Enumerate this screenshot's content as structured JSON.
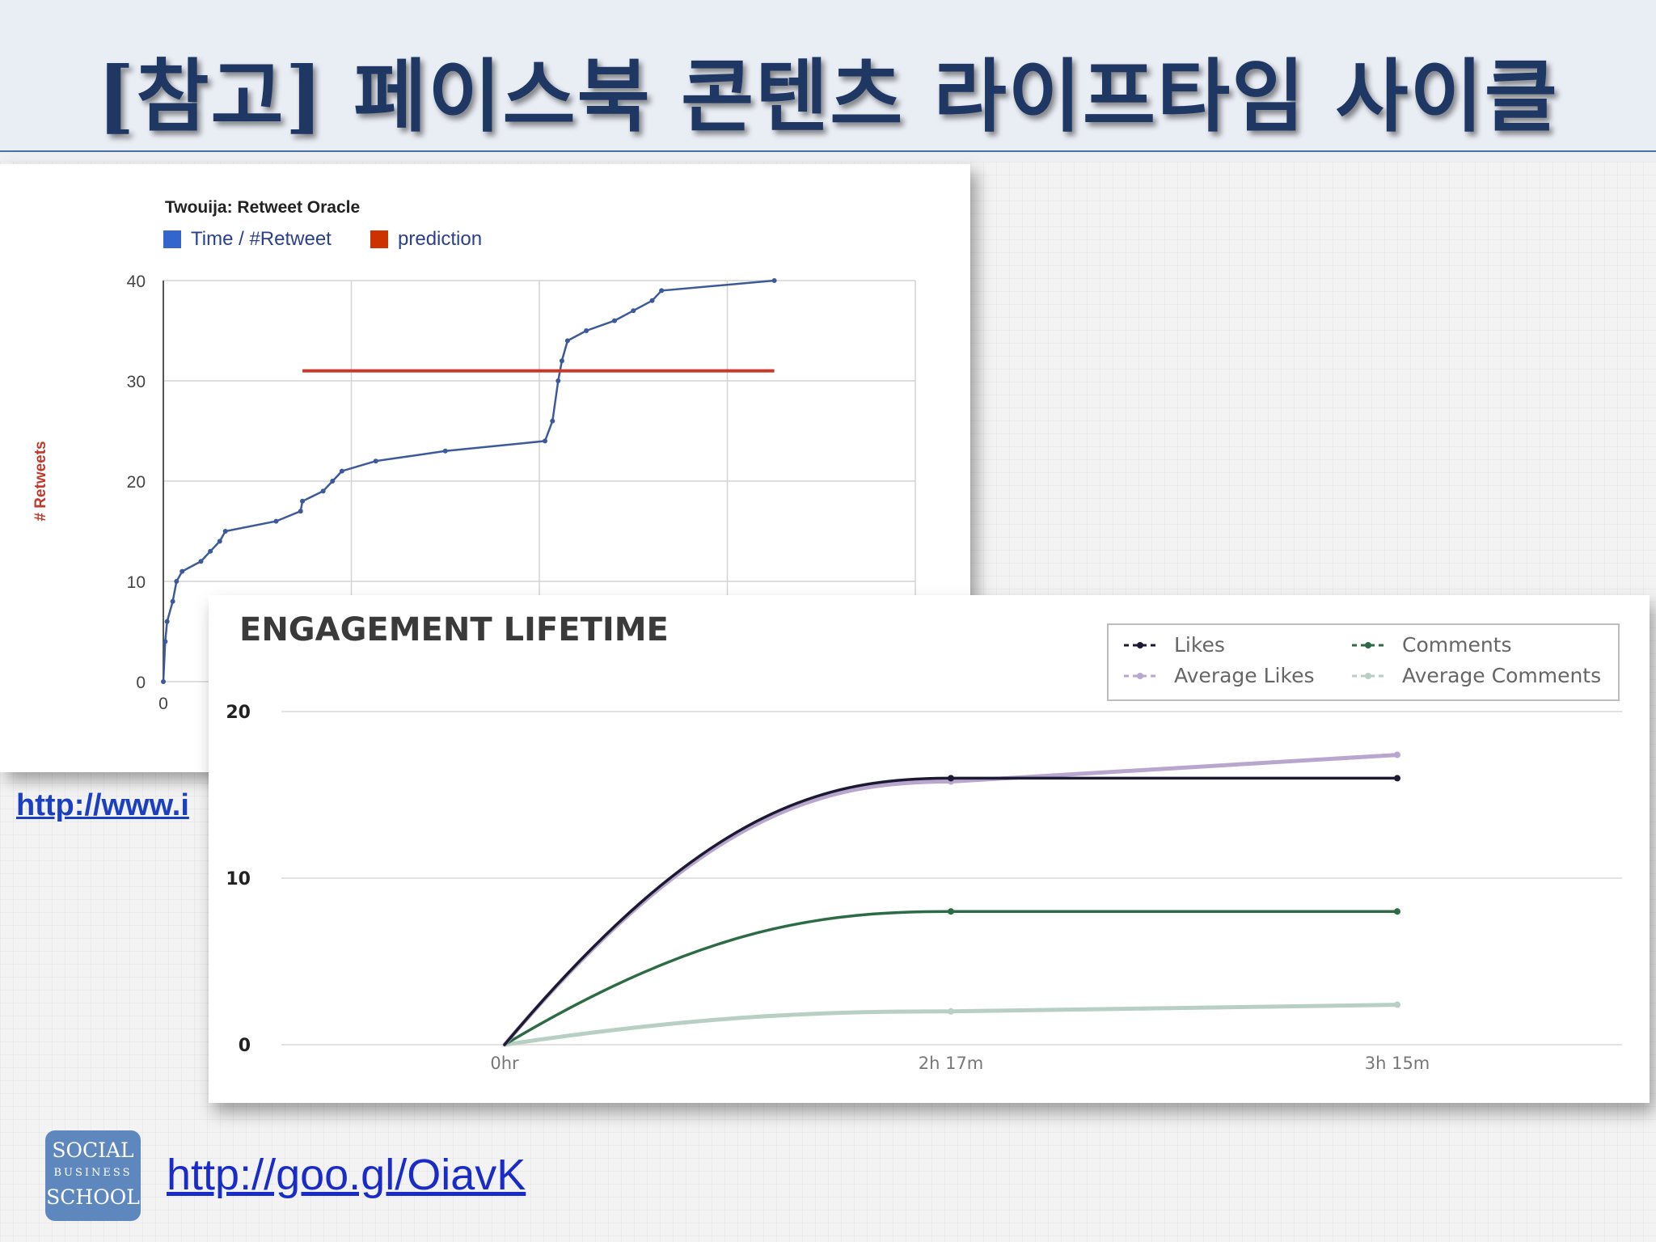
{
  "title": "[참고] 페이스북 콘텐츠 라이프타임 사이클",
  "link_partial": "http://www.i",
  "link_bottom": "http://goo.gl/OiavK",
  "logo": {
    "line1": "SOCIAL",
    "line2": "BUSINESS",
    "line3": "SCHOOL"
  },
  "chart_data": [
    {
      "type": "line",
      "title": "Twouija: Retweet Oracle",
      "ylabel": "# Retweets",
      "xlabel": "",
      "ylim": [
        0,
        40
      ],
      "yticks": [
        0,
        10,
        20,
        30,
        40
      ],
      "xticks": [
        "0"
      ],
      "xlim": [
        0,
        4
      ],
      "grid": true,
      "legend_position": "top-left",
      "series": [
        {
          "name": "Time / #Retweet",
          "color": "#3c5a9a",
          "legend_color": "#3366cc",
          "points": [
            [
              0,
              0
            ],
            [
              0.01,
              4
            ],
            [
              0.02,
              6
            ],
            [
              0.05,
              8
            ],
            [
              0.07,
              10
            ],
            [
              0.1,
              11
            ],
            [
              0.2,
              12
            ],
            [
              0.25,
              13
            ],
            [
              0.3,
              14
            ],
            [
              0.33,
              15
            ],
            [
              0.6,
              16
            ],
            [
              0.73,
              17
            ],
            [
              0.74,
              18
            ],
            [
              0.85,
              19
            ],
            [
              0.9,
              20
            ],
            [
              0.95,
              21
            ],
            [
              1.13,
              22
            ],
            [
              1.5,
              23
            ],
            [
              2.03,
              24
            ],
            [
              2.07,
              26
            ],
            [
              2.1,
              30
            ],
            [
              2.12,
              32
            ],
            [
              2.15,
              34
            ],
            [
              2.25,
              35
            ],
            [
              2.4,
              36
            ],
            [
              2.5,
              37
            ],
            [
              2.6,
              38
            ],
            [
              2.65,
              39
            ],
            [
              3.25,
              40
            ]
          ]
        },
        {
          "name": "prediction",
          "color": "#c8382a",
          "legend_color": "#cc3300",
          "points": [
            [
              0.74,
              31
            ],
            [
              3.25,
              31
            ]
          ]
        }
      ]
    },
    {
      "type": "line",
      "title": "ENGAGEMENT LIFETIME",
      "xlabel": "",
      "ylabel": "",
      "ylim": [
        0,
        20
      ],
      "yticks": [
        0,
        10,
        20
      ],
      "categories": [
        "0hr",
        "2h 17m",
        "3h 15m"
      ],
      "grid": true,
      "legend_position": "top-right",
      "series": [
        {
          "name": "Likes",
          "color": "#1c1a33",
          "values": [
            0,
            16,
            16
          ]
        },
        {
          "name": "Comments",
          "color": "#2d6b45",
          "values": [
            0,
            8,
            8
          ]
        },
        {
          "name": "Average Likes",
          "color": "#b8a6cf",
          "values": [
            0,
            15.8,
            17.4
          ]
        },
        {
          "name": "Average Comments",
          "color": "#b8cfc4",
          "values": [
            0,
            2,
            2.4
          ]
        }
      ]
    }
  ]
}
